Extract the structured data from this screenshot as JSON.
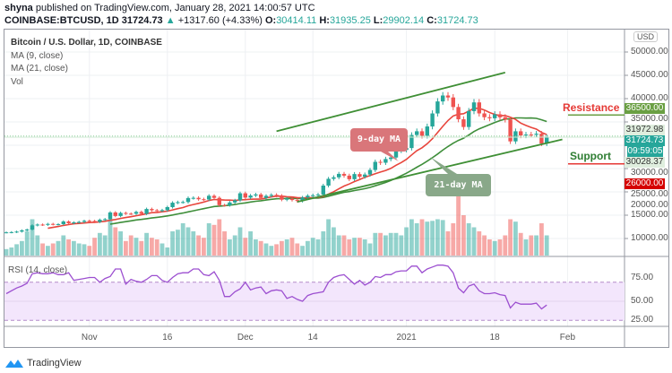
{
  "header": {
    "author": "shyna",
    "published_text": "published on TradingView.com, January 28, 2021 14:00:57 UTC",
    "symbol": "COINBASE:BTCUSD, 1D",
    "last": "31724.73",
    "change": "+1317.60 (+4.33%)",
    "o_label": "O:",
    "o": "30414.11",
    "h_label": "H:",
    "h": "31935.25",
    "l_label": "L:",
    "l": "29902.14",
    "c_label": "C:",
    "c": "31724.73"
  },
  "legend": {
    "title": "Bitcoin / U.S. Dollar, 1D, COINBASE",
    "ma9": "MA (9, close)",
    "ma21": "MA (21, close)",
    "vol": "Vol",
    "rsi": "RSI (14, close)"
  },
  "currency": "USD",
  "annotations": {
    "ma9": "9-day MA",
    "ma21": "21-day MA",
    "resistance": "Resistance",
    "support": "Support"
  },
  "price_labels": {
    "resistance": "36500.00",
    "high": "31972.98",
    "last": "31724.73",
    "countdown": "09:59:05",
    "low": "30028.37",
    "support": "26000.00"
  },
  "colors": {
    "up": "#26a69a",
    "down": "#ef5350",
    "ma9": "#e8453c",
    "ma21": "#3e8e3a",
    "trend": "#3f8f35",
    "rsi": "#9c4fd0",
    "resistance_label": "#6a9f43",
    "support_label": "#d50000"
  },
  "logo": "TradingView",
  "chart_data": {
    "type": "candlestick",
    "start_date": "2020-10-16",
    "interval": "1D",
    "y_axis": {
      "ticks": [
        10000,
        15000,
        20000,
        25000,
        30000,
        35000,
        40000,
        45000,
        50000
      ],
      "tick_labels": [
        "10000.00",
        "15000.00",
        "20000.00",
        "25000.00",
        "30000.00",
        "35000.00",
        "40000.00",
        "45000.00",
        "50000.00"
      ]
    },
    "x_axis": {
      "ticks": [
        {
          "date": "2020-11-01",
          "label": "Nov"
        },
        {
          "date": "2020-11-16",
          "label": "16"
        },
        {
          "date": "2020-12-01",
          "label": "Dec"
        },
        {
          "date": "2020-12-14",
          "label": "14"
        },
        {
          "date": "2021-01-01",
          "label": "2021"
        },
        {
          "date": "2021-01-18",
          "label": "18"
        },
        {
          "date": "2021-02-01",
          "label": "Feb"
        }
      ]
    },
    "first_open": 11300,
    "close": [
      11320,
      11370,
      11480,
      11750,
      11920,
      12820,
      12990,
      12930,
      13130,
      13040,
      13070,
      13650,
      13280,
      13460,
      13560,
      13800,
      13760,
      13550,
      14030,
      14150,
      15590,
      14830,
      15480,
      15330,
      15310,
      15700,
      15290,
      16330,
      16060,
      15970,
      16080,
      16730,
      17680,
      17790,
      17820,
      18680,
      18720,
      18420,
      18370,
      19160,
      18720,
      17150,
      17140,
      17730,
      18180,
      19700,
      18770,
      19220,
      19450,
      18700,
      19150,
      19360,
      19170,
      18320,
      18550,
      18250,
      18040,
      18800,
      19170,
      19280,
      19440,
      21350,
      22800,
      23130,
      23860,
      23480,
      22720,
      23820,
      23250,
      23720,
      24700,
      26440,
      26250,
      27040,
      27370,
      28840,
      29000,
      29400,
      32200,
      33000,
      32020,
      34030,
      36820,
      39400,
      40670,
      40250,
      38200,
      35570,
      33920,
      37320,
      39190,
      36830,
      36020,
      35790,
      36630,
      36000,
      35530,
      30830,
      33000,
      32090,
      32290,
      32250,
      32470,
      30370,
      31724
    ],
    "volume_relative": [
      8,
      10,
      14,
      18,
      30,
      45,
      25,
      15,
      12,
      15,
      18,
      25,
      20,
      18,
      15,
      14,
      12,
      22,
      28,
      25,
      45,
      35,
      30,
      18,
      25,
      22,
      18,
      28,
      22,
      20,
      15,
      10,
      30,
      32,
      40,
      35,
      30,
      25,
      22,
      40,
      38,
      45,
      30,
      20,
      25,
      35,
      22,
      30,
      20,
      18,
      15,
      12,
      14,
      18,
      20,
      22,
      15,
      12,
      18,
      22,
      20,
      30,
      45,
      35,
      25,
      25,
      20,
      22,
      22,
      20,
      15,
      28,
      28,
      25,
      28,
      28,
      25,
      35,
      45,
      40,
      45,
      42,
      43,
      45,
      44,
      30,
      40,
      100,
      50,
      40,
      35,
      30,
      25,
      20,
      18,
      20,
      25,
      45,
      42,
      28,
      20,
      25,
      25,
      40,
      25
    ],
    "ma_periods": [
      9,
      21
    ],
    "trendlines": [
      {
        "name": "channel-upper",
        "from": {
          "date": "2020-12-07",
          "price": 33000
        },
        "to": {
          "date": "2021-01-20",
          "price": 45600
        }
      },
      {
        "name": "channel-lower",
        "from": {
          "date": "2020-12-11",
          "price": 17850
        },
        "to": {
          "date": "2021-01-31",
          "price": 31250
        }
      }
    ],
    "horizontal_levels": [
      {
        "label": "Resistance",
        "price": 36500
      },
      {
        "label": "Support",
        "price": 26000
      }
    ],
    "rsi": {
      "period": 14,
      "ylim": [
        20,
        95
      ],
      "bands": [
        30,
        70
      ],
      "tick_labels": [
        "25.00",
        "50.00",
        "75.00"
      ],
      "values": [
        58,
        61,
        64,
        66,
        69,
        79,
        80,
        79,
        79,
        80,
        78,
        78,
        80,
        72,
        73,
        74,
        75,
        75,
        70,
        74,
        76,
        84,
        84,
        68,
        73,
        71,
        70,
        73,
        77,
        77,
        72,
        70,
        75,
        79,
        80,
        80,
        84,
        84,
        78,
        77,
        81,
        72,
        55,
        55,
        60,
        63,
        70,
        62,
        64,
        65,
        58,
        61,
        62,
        61,
        53,
        55,
        52,
        50,
        56,
        58,
        59,
        60,
        70,
        75,
        77,
        78,
        73,
        68,
        72,
        67,
        70,
        76,
        75,
        78,
        78,
        81,
        82,
        82,
        87,
        87,
        80,
        84,
        86,
        88,
        88,
        87,
        80,
        64,
        59,
        66,
        68,
        61,
        58,
        58,
        59,
        57,
        56,
        43,
        49,
        47,
        47,
        47,
        48,
        42,
        46
      ]
    }
  }
}
